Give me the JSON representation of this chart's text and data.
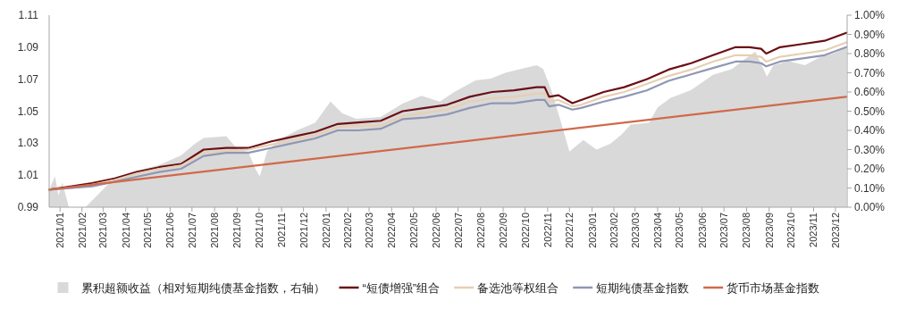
{
  "chart_data": {
    "type": "line",
    "x": [
      "2021-01-01",
      "2021-02-01",
      "2021-03-01",
      "2021-04-01",
      "2021-05-01",
      "2021-06-01",
      "2021-07-01",
      "2021-08-01",
      "2021-09-01",
      "2021-10-01",
      "2021-11-01",
      "2021-12-01",
      "2022-01-01",
      "2022-02-01",
      "2022-03-01",
      "2022-04-01",
      "2022-05-01",
      "2022-06-01",
      "2022-07-01",
      "2022-08-01",
      "2022-09-01",
      "2022-10-01",
      "2022-11-01",
      "2022-11-12",
      "2022-11-18",
      "2022-12-01",
      "2022-12-20",
      "2023-01-01",
      "2023-02-01",
      "2023-03-01",
      "2023-04-01",
      "2023-05-01",
      "2023-06-01",
      "2023-07-01",
      "2023-08-01",
      "2023-08-20",
      "2023-09-05",
      "2023-09-12",
      "2023-10-01",
      "2023-11-01",
      "2023-12-01",
      "2023-12-31"
    ],
    "series": [
      {
        "name": "累积超额收益（相对短期纯债基金指数，右轴）",
        "type": "area",
        "axis": "y2",
        "color": "#d9d9d9",
        "x": [
          "2021-01-01",
          "2021-01-09",
          "2021-01-14",
          "2021-01-19",
          "2021-01-28",
          "2021-02-20",
          "2021-02-25",
          "2021-03-31",
          "2021-05-01",
          "2021-06-01",
          "2021-07-01",
          "2021-07-20",
          "2021-08-01",
          "2021-09-01",
          "2021-09-17",
          "2021-10-01",
          "2021-10-11",
          "2021-10-17",
          "2021-10-27",
          "2021-11-12",
          "2021-12-07",
          "2022-01-01",
          "2022-01-22",
          "2022-02-07",
          "2022-02-26",
          "2022-04-01",
          "2022-05-01",
          "2022-05-27",
          "2022-06-21",
          "2022-07-11",
          "2022-08-09",
          "2022-08-30",
          "2022-09-19",
          "2022-10-10",
          "2022-11-01",
          "2022-11-10",
          "2022-11-21",
          "2022-12-03",
          "2022-12-16",
          "2023-01-04",
          "2023-01-22",
          "2023-02-10",
          "2023-02-26",
          "2023-03-10",
          "2023-04-04",
          "2023-04-16",
          "2023-05-04",
          "2023-06-01",
          "2023-06-16",
          "2023-07-01",
          "2023-07-27",
          "2023-08-13",
          "2023-08-28",
          "2023-09-13",
          "2023-09-22",
          "2023-10-13",
          "2023-11-04",
          "2023-11-24",
          "2023-12-13",
          "2023-12-31"
        ],
        "values": [
          0.09,
          0.16,
          0.06,
          0.13,
          0.0,
          0.0,
          0.02,
          0.15,
          0.19,
          0.22,
          0.27,
          0.33,
          0.36,
          0.37,
          0.3,
          0.29,
          0.2,
          0.16,
          0.29,
          0.35,
          0.4,
          0.44,
          0.55,
          0.49,
          0.46,
          0.47,
          0.54,
          0.58,
          0.55,
          0.6,
          0.66,
          0.67,
          0.7,
          0.72,
          0.74,
          0.72,
          0.61,
          0.46,
          0.29,
          0.35,
          0.3,
          0.33,
          0.38,
          0.43,
          0.44,
          0.52,
          0.57,
          0.61,
          0.65,
          0.69,
          0.72,
          0.77,
          0.81,
          0.68,
          0.74,
          0.76,
          0.74,
          0.78,
          0.8,
          0.83
        ]
      },
      {
        "name": "“短债增强”组合",
        "color": "#6b0f16",
        "values": [
          1.001,
          1.003,
          1.005,
          1.008,
          1.012,
          1.015,
          1.017,
          1.026,
          1.027,
          1.027,
          1.031,
          1.034,
          1.037,
          1.042,
          1.043,
          1.044,
          1.05,
          1.052,
          1.054,
          1.059,
          1.062,
          1.063,
          1.065,
          1.065,
          1.059,
          1.06,
          1.055,
          1.057,
          1.062,
          1.065,
          1.07,
          1.076,
          1.08,
          1.085,
          1.09,
          1.09,
          1.089,
          1.086,
          1.09,
          1.092,
          1.094,
          1.099
        ]
      },
      {
        "name": "备选池等权组合",
        "color": "#e6cfb3",
        "values": [
          1.001,
          1.002,
          1.004,
          1.007,
          1.011,
          1.014,
          1.016,
          1.024,
          1.025,
          1.026,
          1.029,
          1.032,
          1.035,
          1.04,
          1.041,
          1.041,
          1.047,
          1.049,
          1.051,
          1.056,
          1.058,
          1.059,
          1.061,
          1.061,
          1.056,
          1.057,
          1.053,
          1.054,
          1.059,
          1.062,
          1.067,
          1.072,
          1.076,
          1.081,
          1.085,
          1.085,
          1.084,
          1.081,
          1.084,
          1.086,
          1.088,
          1.093
        ]
      },
      {
        "name": "短期纯债基金指数",
        "color": "#8f97b5",
        "values": [
          1.001,
          1.002,
          1.003,
          1.006,
          1.009,
          1.012,
          1.014,
          1.022,
          1.024,
          1.024,
          1.027,
          1.03,
          1.033,
          1.038,
          1.038,
          1.039,
          1.045,
          1.046,
          1.048,
          1.052,
          1.055,
          1.055,
          1.057,
          1.057,
          1.053,
          1.054,
          1.051,
          1.052,
          1.056,
          1.059,
          1.063,
          1.069,
          1.073,
          1.077,
          1.081,
          1.081,
          1.08,
          1.078,
          1.081,
          1.083,
          1.085,
          1.09
        ]
      },
      {
        "name": "货币市场基金指数",
        "color": "#d0694a",
        "x": [
          "2021-01-01",
          "2023-12-31"
        ],
        "values": [
          1.001,
          1.059
        ]
      }
    ],
    "xlim": [
      "2021-01-01",
      "2024-01-01"
    ],
    "xticks": [
      {
        "value": "2021-01-16",
        "label": "2021/01"
      },
      {
        "value": "2021-02-15",
        "label": "2021/02"
      },
      {
        "value": "2021-03-16",
        "label": "2021/03"
      },
      {
        "value": "2021-04-16",
        "label": "2021/04"
      },
      {
        "value": "2021-05-16",
        "label": "2021/05"
      },
      {
        "value": "2021-06-16",
        "label": "2021/06"
      },
      {
        "value": "2021-07-16",
        "label": "2021/07"
      },
      {
        "value": "2021-08-16",
        "label": "2021/08"
      },
      {
        "value": "2021-09-16",
        "label": "2021/09"
      },
      {
        "value": "2021-10-16",
        "label": "2021/10"
      },
      {
        "value": "2021-11-16",
        "label": "2021/11"
      },
      {
        "value": "2021-12-16",
        "label": "2021/12"
      },
      {
        "value": "2022-01-16",
        "label": "2022/01"
      },
      {
        "value": "2022-02-15",
        "label": "2022/02"
      },
      {
        "value": "2022-03-16",
        "label": "2022/03"
      },
      {
        "value": "2022-04-16",
        "label": "2022/04"
      },
      {
        "value": "2022-05-16",
        "label": "2022/05"
      },
      {
        "value": "2022-06-16",
        "label": "2022/06"
      },
      {
        "value": "2022-07-16",
        "label": "2022/07"
      },
      {
        "value": "2022-08-16",
        "label": "2022/08"
      },
      {
        "value": "2022-09-16",
        "label": "2022/09"
      },
      {
        "value": "2022-10-16",
        "label": "2022/10"
      },
      {
        "value": "2022-11-16",
        "label": "2022/11"
      },
      {
        "value": "2022-12-16",
        "label": "2022/12"
      },
      {
        "value": "2023-01-16",
        "label": "2023/01"
      },
      {
        "value": "2023-02-15",
        "label": "2023/02"
      },
      {
        "value": "2023-03-16",
        "label": "2023/03"
      },
      {
        "value": "2023-04-16",
        "label": "2023/04"
      },
      {
        "value": "2023-05-16",
        "label": "2023/05"
      },
      {
        "value": "2023-06-16",
        "label": "2023/06"
      },
      {
        "value": "2023-07-16",
        "label": "2023/07"
      },
      {
        "value": "2023-08-16",
        "label": "2023/08"
      },
      {
        "value": "2023-09-16",
        "label": "2023/09"
      },
      {
        "value": "2023-10-16",
        "label": "2023/10"
      },
      {
        "value": "2023-11-16",
        "label": "2023/11"
      },
      {
        "value": "2023-12-16",
        "label": "2023/12"
      }
    ],
    "ylim": [
      0.99,
      1.11
    ],
    "yticks": [
      {
        "value": 0.99,
        "label": "0.99"
      },
      {
        "value": 1.01,
        "label": "1.01"
      },
      {
        "value": 1.03,
        "label": "1.03"
      },
      {
        "value": 1.05,
        "label": "1.05"
      },
      {
        "value": 1.07,
        "label": "1.07"
      },
      {
        "value": 1.09,
        "label": "1.09"
      },
      {
        "value": 1.11,
        "label": "1.11"
      }
    ],
    "y2lim": [
      0,
      1
    ],
    "y2ticks": [
      {
        "value": 0,
        "label": "0.00%"
      },
      {
        "value": 0.1,
        "label": "0.10%"
      },
      {
        "value": 0.2,
        "label": "0.20%"
      },
      {
        "value": 0.3,
        "label": "0.30%"
      },
      {
        "value": 0.4,
        "label": "0.40%"
      },
      {
        "value": 0.5,
        "label": "0.50%"
      },
      {
        "value": 0.6,
        "label": "0.60%"
      },
      {
        "value": 0.7,
        "label": "0.70%"
      },
      {
        "value": 0.8,
        "label": "0.80%"
      },
      {
        "value": 0.9,
        "label": "0.90%"
      },
      {
        "value": 1,
        "label": "1.00%"
      }
    ],
    "legend": "bottom"
  }
}
